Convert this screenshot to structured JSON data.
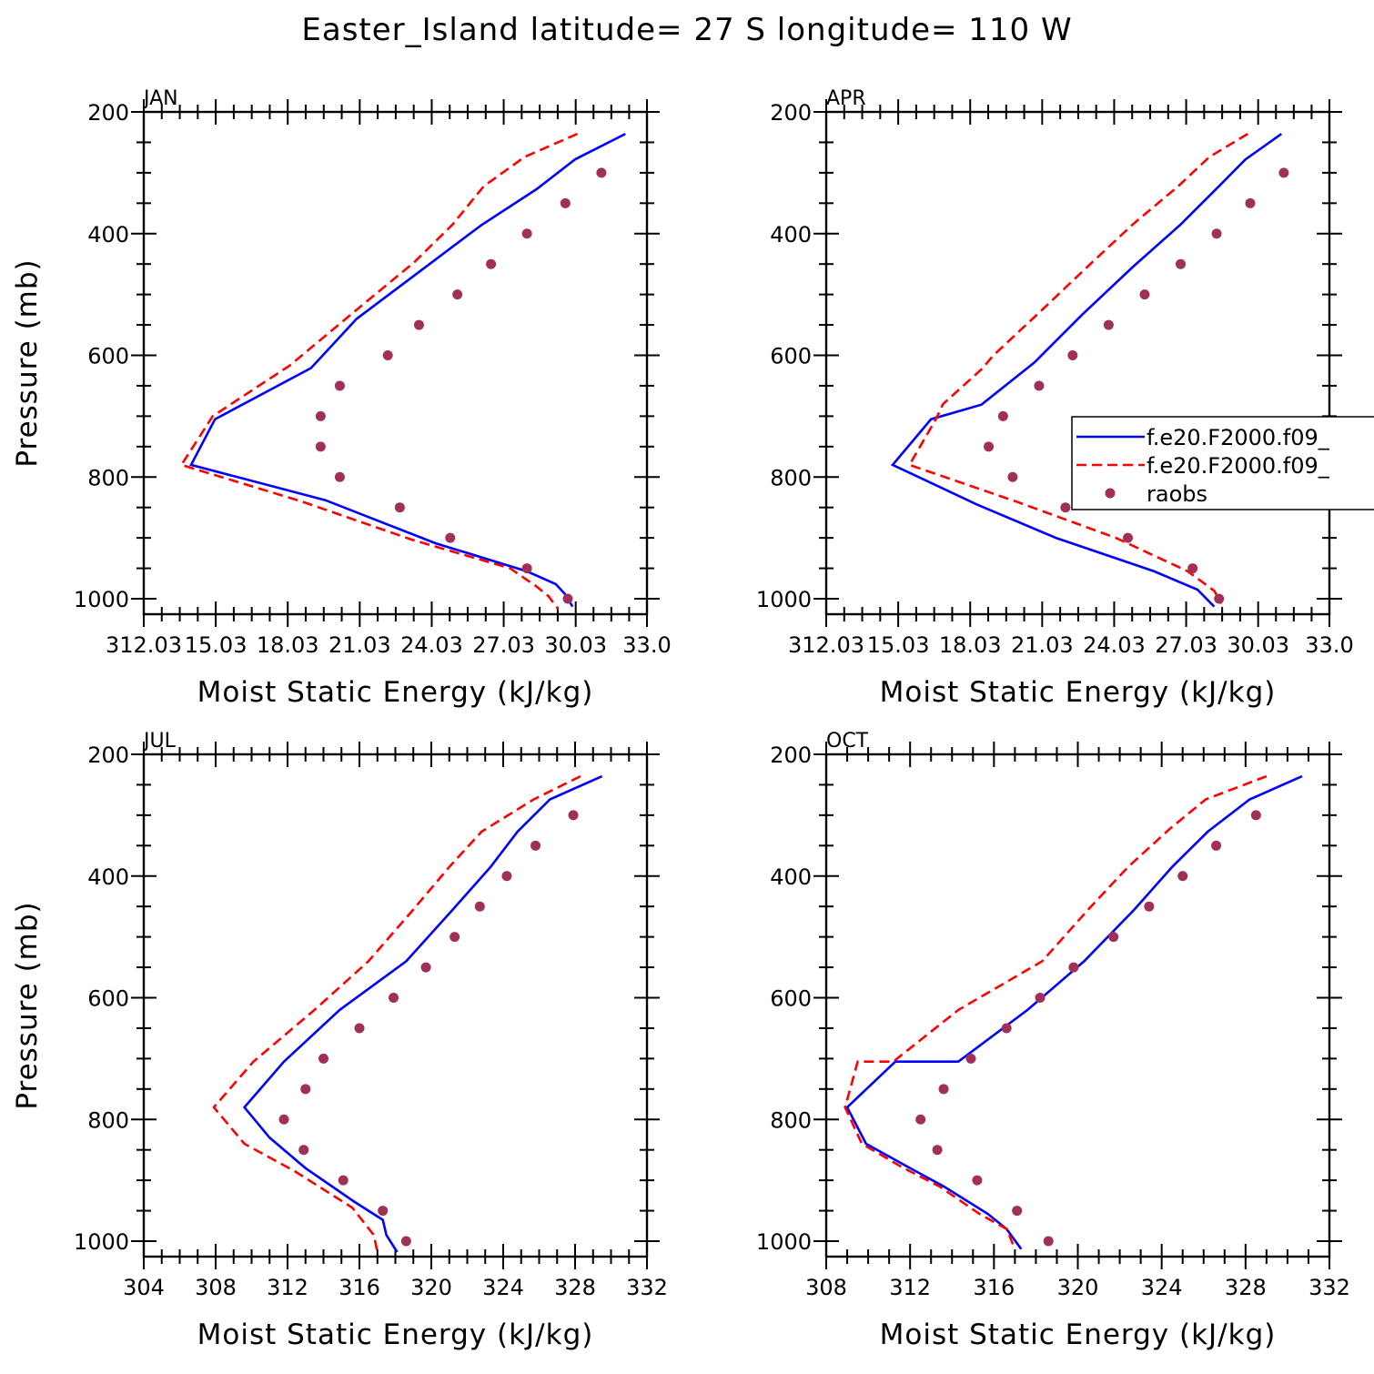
{
  "title": "Easter_Island  latitude= 27 S longitude= 110 W",
  "colors": {
    "model1": "#0000ff",
    "model2": "#ff0000",
    "raobs": "#a0305a",
    "axes": "#000000"
  },
  "legend": {
    "entries": [
      "f.e20.F2000.f09_",
      "f.e20.F2000.f09_",
      "raobs"
    ],
    "panel": 1
  },
  "chart_data": [
    {
      "type": "line",
      "panel_title": "JAN",
      "xlabel": "Moist Static Energy (kJ/kg)",
      "ylabel": "Pressure (mb)",
      "xlim": [
        312.03,
        333.0
      ],
      "xticks": [
        "312.03",
        "15.03",
        "18.03",
        "21.03",
        "24.03",
        "27.03",
        "30.03",
        "33.0"
      ],
      "xtick_values": [
        312.03,
        315.03,
        318.03,
        321.03,
        324.03,
        327.03,
        330.03,
        333.0
      ],
      "ylim": [
        1025,
        200
      ],
      "yticks": [
        200,
        400,
        600,
        800,
        1000
      ],
      "series": [
        {
          "key": "model1",
          "x": [
            332.1,
            330.0,
            328.4,
            326.1,
            323.8,
            320.9,
            319.0,
            315.0,
            314.0,
            319.6,
            324.2,
            328.0,
            329.2,
            329.6,
            329.9
          ],
          "y": [
            236,
            278,
            327,
            386,
            454,
            540,
            621,
            705,
            780,
            838,
            909,
            955,
            976,
            993,
            1013
          ]
        },
        {
          "key": "model2",
          "x": [
            330.1,
            327.9,
            326.2,
            324.9,
            323.3,
            320.6,
            318.1,
            314.9,
            313.6,
            318.6,
            323.2,
            327.3,
            328.4,
            328.9,
            329.3
          ],
          "y": [
            236,
            274,
            322,
            385,
            447,
            535,
            617,
            700,
            780,
            840,
            903,
            950,
            980,
            996,
            1017
          ]
        },
        {
          "key": "raobs",
          "x": [
            331.1,
            329.6,
            328.0,
            326.5,
            325.1,
            323.5,
            322.2,
            320.2,
            319.4,
            319.4,
            320.2,
            322.7,
            324.8,
            328.0,
            329.7
          ],
          "y": [
            300,
            350,
            400,
            450,
            500,
            550,
            600,
            650,
            700,
            750,
            800,
            850,
            900,
            950,
            1000
          ]
        }
      ]
    },
    {
      "type": "line",
      "panel_title": "APR",
      "xlabel": "Moist Static Energy (kJ/kg)",
      "ylabel": "",
      "xlim": [
        312.03,
        333.0
      ],
      "xticks": [
        "312.03",
        "15.03",
        "18.03",
        "21.03",
        "24.03",
        "27.03",
        "30.03",
        "33.0"
      ],
      "xtick_values": [
        312.03,
        315.03,
        318.03,
        321.03,
        324.03,
        327.03,
        330.03,
        333.0
      ],
      "ylim": [
        1025,
        200
      ],
      "yticks": [
        200,
        400,
        600,
        800,
        1000
      ],
      "series": [
        {
          "key": "model1",
          "x": [
            331.0,
            329.5,
            328.4,
            326.8,
            324.8,
            322.7,
            320.7,
            318.5,
            316.4,
            314.8,
            318.3,
            321.6,
            325.7,
            327.5,
            328.2
          ],
          "y": [
            236,
            278,
            322,
            385,
            455,
            533,
            612,
            681,
            705,
            780,
            845,
            900,
            955,
            985,
            1013
          ]
        },
        {
          "key": "model2",
          "x": [
            329.6,
            328.0,
            326.7,
            324.8,
            322.9,
            320.9,
            319.0,
            318.5,
            316.9,
            316.6,
            315.5,
            320.0,
            324.1,
            327.1,
            328.2,
            328.5
          ],
          "y": [
            236,
            274,
            322,
            385,
            455,
            530,
            600,
            623,
            680,
            705,
            780,
            841,
            900,
            955,
            987,
            1008
          ]
        },
        {
          "key": "raobs",
          "x": [
            331.1,
            329.7,
            328.3,
            326.8,
            325.3,
            323.8,
            322.3,
            320.9,
            319.4,
            318.8,
            319.8,
            322.0,
            324.6,
            327.3,
            328.4
          ],
          "y": [
            300,
            350,
            400,
            450,
            500,
            550,
            600,
            650,
            700,
            750,
            800,
            850,
            900,
            950,
            1000
          ]
        }
      ]
    },
    {
      "type": "line",
      "panel_title": "JUL",
      "xlabel": "Moist Static Energy (kJ/kg)",
      "ylabel": "Pressure (mb)",
      "xlim": [
        304,
        332
      ],
      "xticks": [
        "304",
        "308",
        "312",
        "316",
        "320",
        "324",
        "328",
        "332"
      ],
      "xtick_values": [
        304,
        308,
        312,
        316,
        320,
        324,
        328,
        332
      ],
      "ylim": [
        1025,
        200
      ],
      "yticks": [
        200,
        400,
        600,
        800,
        1000
      ],
      "series": [
        {
          "key": "model1",
          "x": [
            329.5,
            326.6,
            324.8,
            323.3,
            321.2,
            318.6,
            314.9,
            311.8,
            309.6,
            311.0,
            313.0,
            315.7,
            317.3,
            317.5,
            318.1
          ],
          "y": [
            236,
            274,
            327,
            385,
            455,
            540,
            620,
            705,
            780,
            830,
            880,
            935,
            965,
            990,
            1018
          ]
        },
        {
          "key": "model2",
          "x": [
            328.3,
            325.7,
            322.8,
            321.0,
            319.0,
            316.5,
            313.5,
            310.1,
            307.9,
            309.6,
            312.4,
            315.6,
            316.8,
            317.0
          ],
          "y": [
            236,
            274,
            327,
            385,
            455,
            540,
            620,
            705,
            780,
            840,
            885,
            945,
            990,
            1018
          ]
        },
        {
          "key": "raobs",
          "x": [
            327.9,
            325.8,
            324.2,
            322.7,
            321.3,
            319.7,
            317.9,
            316.0,
            314.0,
            313.0,
            311.8,
            312.9,
            315.1,
            317.3,
            318.6
          ],
          "y": [
            300,
            350,
            400,
            450,
            500,
            550,
            600,
            650,
            700,
            750,
            800,
            850,
            900,
            950,
            1000
          ]
        }
      ]
    },
    {
      "type": "line",
      "panel_title": "OCT",
      "xlabel": "Moist Static Energy (kJ/kg)",
      "ylabel": "",
      "xlim": [
        308,
        332
      ],
      "xticks": [
        "308",
        "312",
        "316",
        "320",
        "324",
        "328",
        "332"
      ],
      "xtick_values": [
        308,
        312,
        316,
        320,
        324,
        328,
        332
      ],
      "ylim": [
        1025,
        200
      ],
      "yticks": [
        200,
        400,
        600,
        800,
        1000
      ],
      "series": [
        {
          "key": "model1",
          "x": [
            330.7,
            328.2,
            326.2,
            324.5,
            322.7,
            320.3,
            317.6,
            314.3,
            311.3,
            309.0,
            309.9,
            312.0,
            313.6,
            315.7,
            316.6,
            317.3
          ],
          "y": [
            236,
            274,
            327,
            385,
            455,
            540,
            620,
            705,
            705,
            780,
            840,
            880,
            910,
            955,
            980,
            1013
          ]
        },
        {
          "key": "model2",
          "x": [
            329.0,
            326.1,
            324.4,
            322.4,
            320.5,
            318.3,
            314.3,
            311.2,
            309.5,
            308.9,
            309.7,
            311.7,
            313.4,
            315.3,
            316.6,
            317.0
          ],
          "y": [
            236,
            274,
            322,
            385,
            455,
            540,
            620,
            705,
            705,
            780,
            840,
            880,
            910,
            955,
            980,
            1013
          ]
        },
        {
          "key": "raobs",
          "x": [
            328.5,
            326.6,
            325.0,
            323.4,
            321.7,
            319.8,
            318.2,
            316.6,
            314.9,
            313.6,
            312.5,
            313.3,
            315.2,
            317.1,
            318.6
          ],
          "y": [
            300,
            350,
            400,
            450,
            500,
            550,
            600,
            650,
            700,
            750,
            800,
            850,
            900,
            950,
            1000
          ]
        }
      ]
    }
  ]
}
